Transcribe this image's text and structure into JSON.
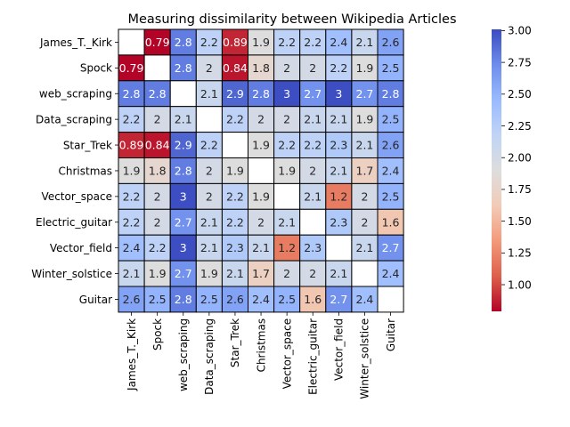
{
  "chart_data": {
    "type": "heatmap",
    "title": "Measuring dissimilarity between Wikipedia Articles",
    "row_labels": [
      "James_T._Kirk",
      "Spock",
      "web_scraping",
      "Data_scraping",
      "Star_Trek",
      "Christmas",
      "Vector_space",
      "Electric_guitar",
      "Vector_field",
      "Winter_solstice",
      "Guitar"
    ],
    "col_labels": [
      "James_T._Kirk",
      "Spock",
      "web_scraping",
      "Data_scraping",
      "Star_Trek",
      "Christmas",
      "Vector_space",
      "Electric_guitar",
      "Vector_field",
      "Winter_solstice",
      "Guitar"
    ],
    "values": [
      [
        null,
        0.79,
        2.8,
        2.2,
        0.89,
        1.9,
        2.2,
        2.2,
        2.4,
        2.1,
        2.6
      ],
      [
        0.79,
        null,
        2.8,
        2,
        0.84,
        1.8,
        2,
        2,
        2.2,
        1.9,
        2.5
      ],
      [
        2.8,
        2.8,
        null,
        2.1,
        2.9,
        2.8,
        3,
        2.7,
        3,
        2.7,
        2.8
      ],
      [
        2.2,
        2,
        2.1,
        null,
        2.2,
        2,
        2,
        2.1,
        2.1,
        1.9,
        2.5
      ],
      [
        0.89,
        0.84,
        2.9,
        2.2,
        null,
        1.9,
        2.2,
        2.2,
        2.3,
        2.1,
        2.6
      ],
      [
        1.9,
        1.8,
        2.8,
        2,
        1.9,
        null,
        1.9,
        2,
        2.1,
        1.7,
        2.4
      ],
      [
        2.2,
        2,
        3,
        2,
        2.2,
        1.9,
        null,
        2.1,
        1.2,
        2,
        2.5
      ],
      [
        2.2,
        2,
        2.7,
        2.1,
        2.2,
        2,
        2.1,
        null,
        2.3,
        2,
        1.6
      ],
      [
        2.4,
        2.2,
        3,
        2.1,
        2.3,
        2.1,
        1.2,
        2.3,
        null,
        2.1,
        2.7
      ],
      [
        2.1,
        1.9,
        2.7,
        1.9,
        2.1,
        1.7,
        2,
        2,
        2.1,
        null,
        2.4
      ],
      [
        2.6,
        2.5,
        2.8,
        2.5,
        2.6,
        2.4,
        2.5,
        1.6,
        2.7,
        2.4,
        null
      ]
    ],
    "colormap": "coolwarm_r",
    "color_range": [
      0.79,
      3.01
    ],
    "colorbar_ticks": [
      "1.00",
      "1.25",
      "1.50",
      "1.75",
      "2.00",
      "2.25",
      "2.50",
      "2.75",
      "3.00"
    ],
    "colorbar_tick_values": [
      1.0,
      1.25,
      1.5,
      1.75,
      2.0,
      2.25,
      2.5,
      2.75,
      3.0
    ],
    "missing_cell_color": "#ffffff",
    "cell_border_color": "#000000"
  }
}
